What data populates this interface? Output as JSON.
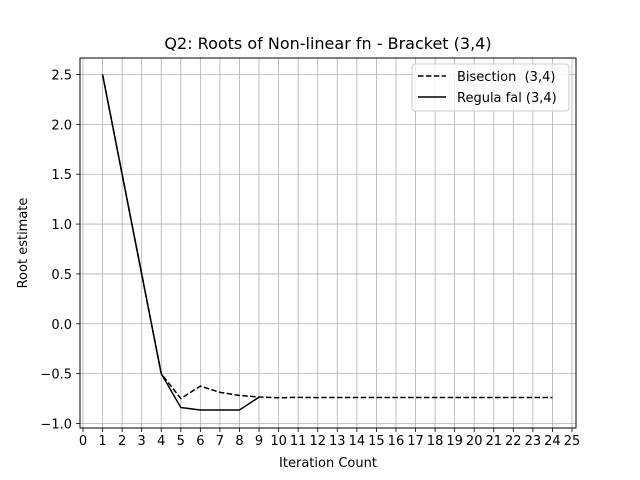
{
  "chart_data": {
    "type": "line",
    "title": "Q2: Roots of Non-linear fn - Bracket (3,4)",
    "xlabel": "Iteration Count",
    "ylabel": "Root estimate",
    "xlim": [
      0,
      25
    ],
    "ylim": [
      -1.0,
      2.5
    ],
    "xticks": [
      0,
      1,
      2,
      3,
      4,
      5,
      6,
      7,
      8,
      9,
      10,
      11,
      12,
      13,
      14,
      15,
      16,
      17,
      18,
      19,
      20,
      21,
      22,
      23,
      24,
      25
    ],
    "yticks": [
      -1.0,
      -0.5,
      0.0,
      0.5,
      1.0,
      1.5,
      2.0,
      2.5
    ],
    "ytick_labels": [
      "−1.0",
      "−0.5",
      "0.0",
      "0.5",
      "1.0",
      "1.5",
      "2.0",
      "2.5"
    ],
    "grid": true,
    "legend_position": "top-right",
    "series": [
      {
        "name": "Bisection  (3,4)",
        "style": "dashed",
        "color": "#000000",
        "x": [
          1,
          2,
          3,
          4,
          5,
          6,
          7,
          8,
          9,
          10,
          11,
          12,
          13,
          14,
          15,
          16,
          17,
          18,
          19,
          20,
          21,
          22,
          23,
          24
        ],
        "y": [
          2.5,
          1.5,
          0.5,
          -0.5,
          -0.75,
          -0.625,
          -0.6875,
          -0.71875,
          -0.734375,
          -0.742,
          -0.738,
          -0.74,
          -0.739,
          -0.739,
          -0.739,
          -0.739,
          -0.739,
          -0.739,
          -0.739,
          -0.739,
          -0.739,
          -0.739,
          -0.739,
          -0.739
        ]
      },
      {
        "name": "Regula fal (3,4)",
        "style": "solid",
        "color": "#000000",
        "x": [
          1,
          2,
          3,
          4,
          5,
          6,
          7,
          8,
          9
        ],
        "y": [
          2.5,
          1.5,
          0.5,
          -0.5,
          -0.84,
          -0.865,
          -0.865,
          -0.865,
          -0.735
        ]
      }
    ]
  }
}
